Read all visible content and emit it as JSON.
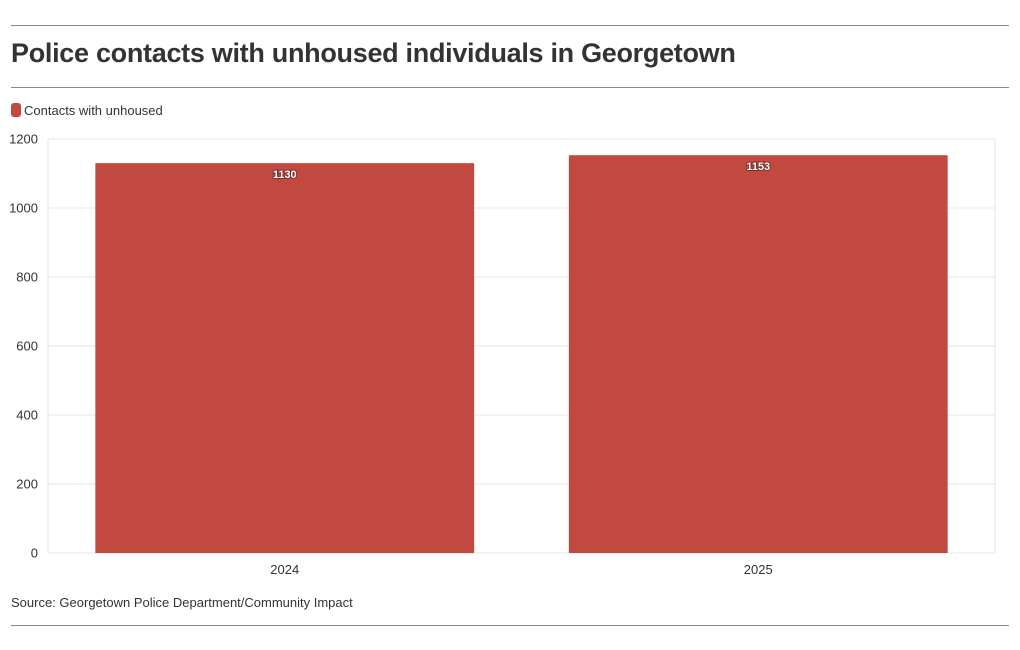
{
  "header": {
    "title": "Police contacts with unhoused individuals in Georgetown"
  },
  "legend": {
    "label": "Contacts with unhoused"
  },
  "footer": {
    "source": "Source: Georgetown Police Department/Community Impact"
  },
  "colors": {
    "bar": "#c2493f",
    "text": "#333333",
    "grid": "#e6e6e6",
    "rule": "#8a8a8a"
  },
  "chart_data": {
    "type": "bar",
    "categories": [
      "2024",
      "2025"
    ],
    "series": [
      {
        "name": "Contacts with unhoused",
        "values": [
          1130,
          1153
        ]
      }
    ],
    "ylim": [
      0,
      1200
    ],
    "yticks": [
      0,
      200,
      400,
      600,
      800,
      1000,
      1200
    ],
    "grid": true,
    "legend_position": "top-left",
    "data_labels": true
  }
}
